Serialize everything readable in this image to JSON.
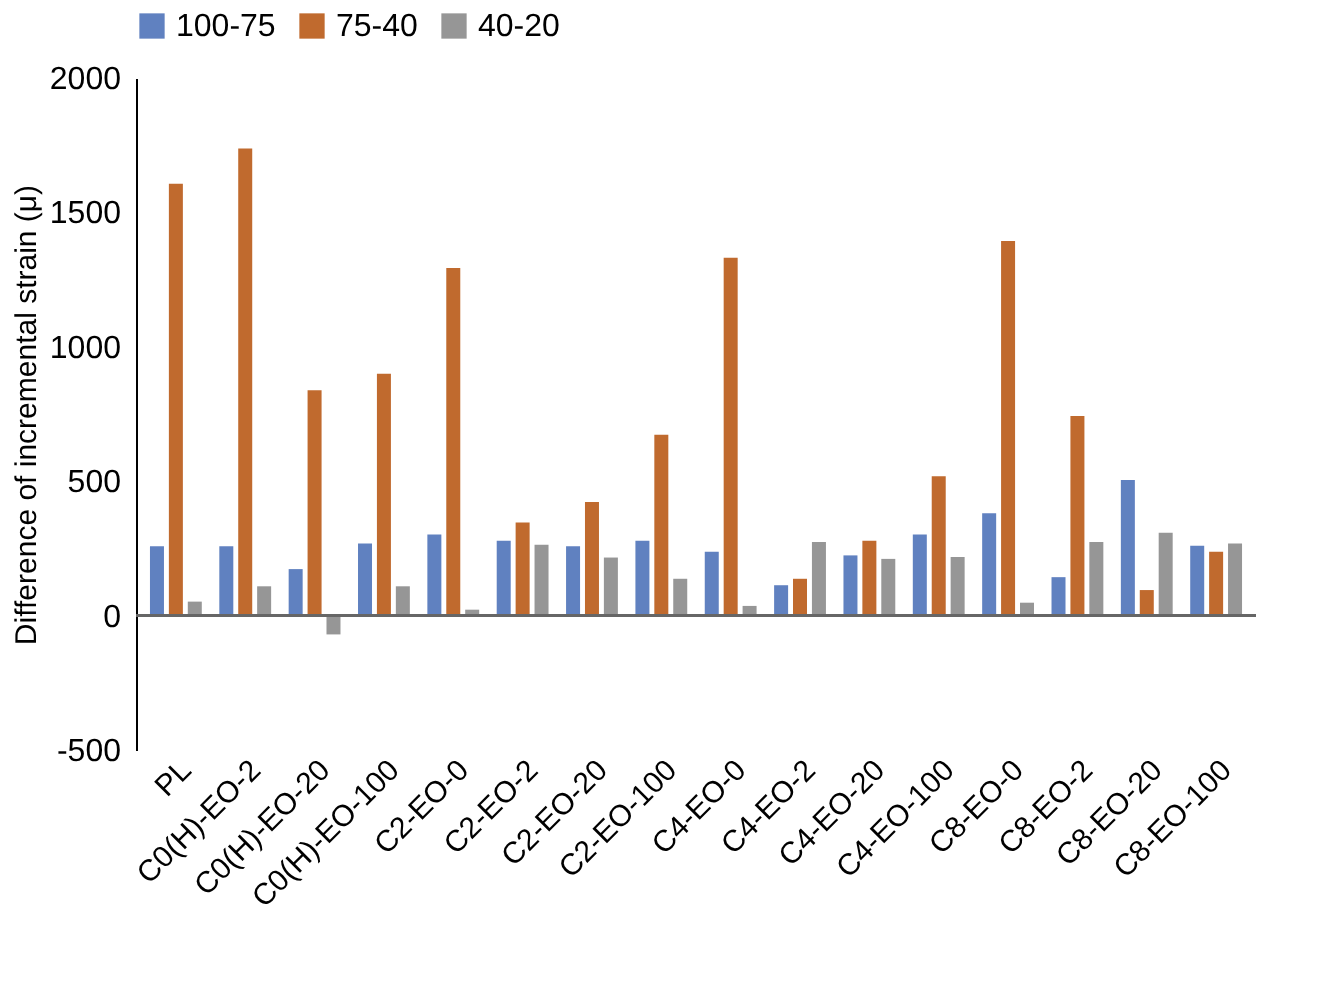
{
  "chart_data": {
    "type": "bar",
    "ylabel": "Difference of incremental strain (μ)",
    "categories": [
      "PL",
      "C0(H)-EO-2",
      "C0(H)-EO-20",
      "C0(H)-EO-100",
      "C2-EO-0",
      "C2-EO-2",
      "C2-EO-20",
      "C2-EO-100",
      "C4-EO-0",
      "C4-EO-2",
      "C4-EO-20",
      "C4-EO-100",
      "C8-EO-0",
      "C8-EO-2",
      "C8-EO-20",
      "C8-EO-100"
    ],
    "series": [
      {
        "name": "100-75",
        "color": "#6081c0",
        "values": [
          258,
          258,
          173,
          268,
          302,
          278,
          258,
          278,
          238,
          113,
          224,
          302,
          381,
          143,
          504,
          260
        ]
      },
      {
        "name": "75-40",
        "color": "#c06a2e",
        "values": [
          1607,
          1738,
          838,
          900,
          1293,
          346,
          423,
          673,
          1331,
          137,
          278,
          518,
          1394,
          743,
          95,
          238
        ]
      },
      {
        "name": "40-20",
        "color": "#969696",
        "values": [
          52,
          109,
          -70,
          109,
          22,
          264,
          216,
          137,
          36,
          274,
          211,
          218,
          48,
          274,
          308,
          268
        ]
      }
    ],
    "ylim": [
      -500,
      2000
    ],
    "yticks": [
      -500,
      0,
      500,
      1000,
      1500,
      2000
    ],
    "legend": "top"
  }
}
